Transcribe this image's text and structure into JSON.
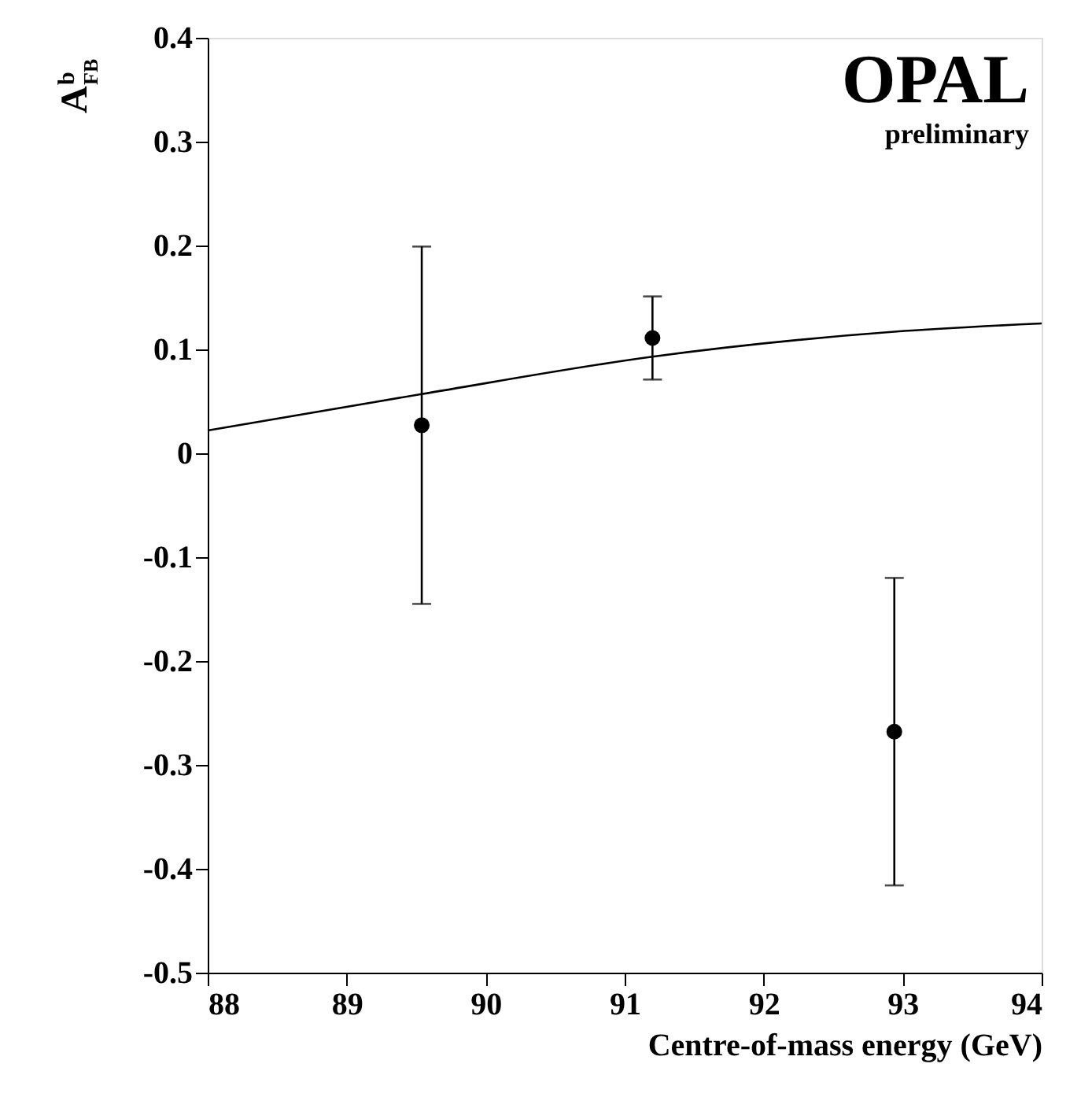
{
  "chart_data": {
    "type": "scatter",
    "xlabel": "Centre-of-mass energy (GeV)",
    "ylabel": "A$^{b}$$_{FB}$",
    "x": [
      89.54,
      91.2,
      92.94
    ],
    "series": [
      {
        "color": "#000000",
        "marker": "circle",
        "values": [
          0.027,
          0.111,
          -0.268
        ],
        "errors": [
          0.172,
          0.04,
          0.148
        ]
      },
      {
        "type": "line",
        "color": "#000000",
        "marker": "none",
        "line_style": "solid",
        "x": [
          88,
          89.54,
          91.2,
          92.94,
          94
        ],
        "values": [
          0.022,
          0.057,
          0.093,
          0.117,
          0.125
        ]
      }
    ],
    "xlim": [
      88,
      94
    ],
    "ylim": [
      -0.5,
      0.4
    ],
    "xticks": [
      88,
      89,
      90,
      91,
      92,
      93,
      94
    ],
    "yticks": [
      -0.5,
      -0.4,
      -0.3,
      -0.2,
      -0.1,
      0,
      0.1,
      0.2,
      0.3,
      0.4
    ],
    "annotations": [
      "OPAL",
      "preliminary"
    ],
    "grid": false
  }
}
